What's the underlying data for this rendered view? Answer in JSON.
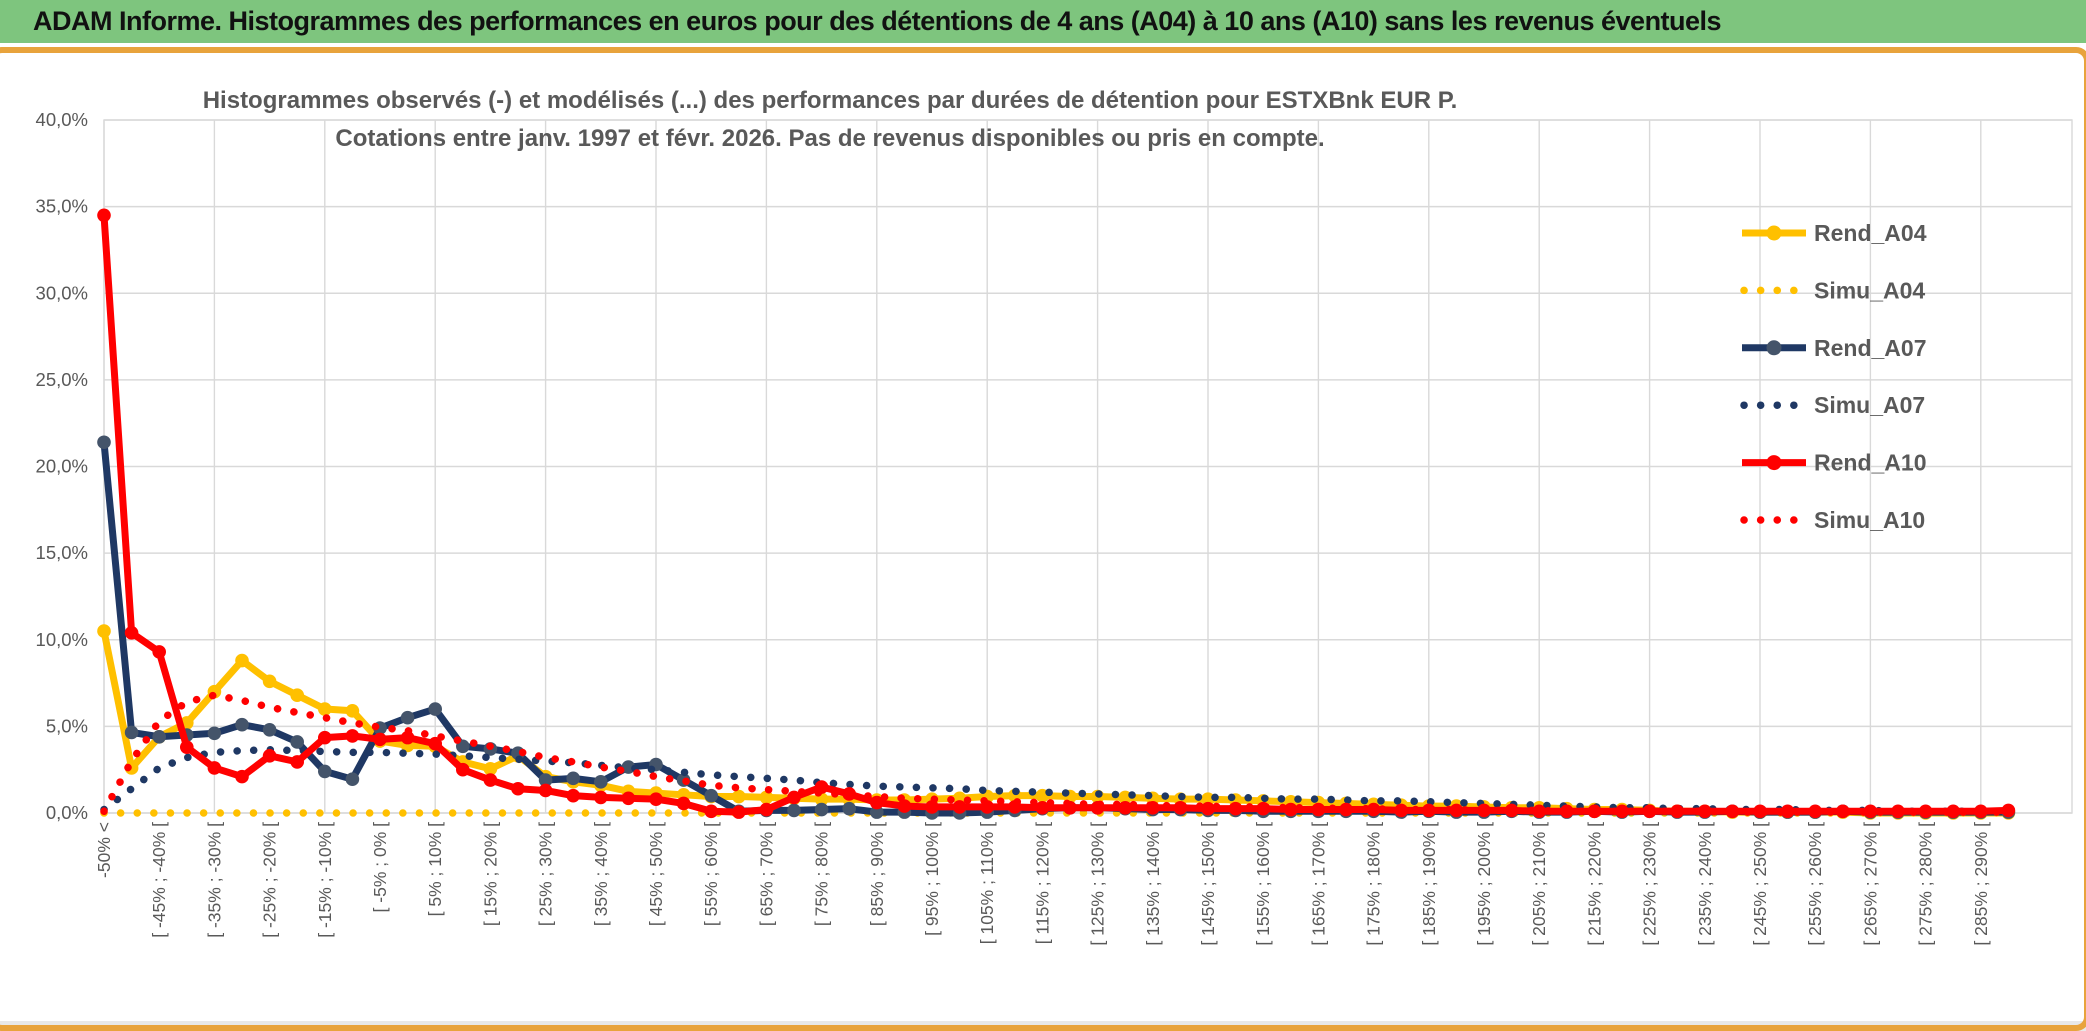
{
  "header": {
    "title": "ADAM Informe. Histogrammes des performances en euros pour des détentions de 4 ans (A04) à 10 ans (A10) sans les revenus éventuels"
  },
  "colors": {
    "title_bar_green": "#7ec57e",
    "chart_border_gold": "#e8a33c",
    "grid": "#d9d9d9",
    "axis_text": "#595959",
    "gold_series": "#FFC000",
    "navy_series": "#1F3864",
    "navy_marker": "#44546A",
    "red_series": "#FF0000"
  },
  "chart_data": {
    "type": "line",
    "title_line1": "Histogrammes observés (-) et modélisés (...) des performances par durées de détention pour ESTXBnk EUR P.",
    "title_line2": "Cotations entre janv. 1997 et févr. 2026. Pas de revenus disponibles ou pris en compte.",
    "ylabel": "",
    "xlabel": "",
    "ylim": [
      0,
      40
    ],
    "y_tick_step": 5,
    "y_tick_labels": [
      "0,0%",
      "5,0%",
      "10,0%",
      "15,0%",
      "20,0%",
      "25,0%",
      "30,0%",
      "35,0%",
      "40,0%"
    ],
    "grid": true,
    "legend_position": "right-inside",
    "n_points": 70,
    "x_label_interval": 2,
    "x_labels": [
      "-50% <",
      "[ -45% ; -40% [",
      "[ -35% ; -30% [",
      "[ -25% ; -20% [",
      "[ -15% ; -10% [",
      "[ -5% ; 0% [",
      "[ 5% ; 10% [",
      "[ 15% ; 20% [",
      "[ 25% ; 30% [",
      "[ 35% ; 40% [",
      "[ 45% ; 50% [",
      "[ 55% ; 60% [",
      "[ 65% ; 70% [",
      "[ 75% ; 80% [",
      "[ 85% ; 90% [",
      "[ 95% ; 100% [",
      "[ 105% ; 110% [",
      "[ 115% ; 120% [",
      "[ 125% ; 130% [",
      "[ 135% ; 140% [",
      "[ 145% ; 150% [",
      "[ 155% ; 160% [",
      "[ 165% ; 170% [",
      "[ 175% ; 180% [",
      "[ 185% ; 190% [",
      "[ 195% ; 200% [",
      "[ 205% ; 210% [",
      "[ 215% ; 220% [",
      "[ 225% ; 230% [",
      "[ 235% ; 240% [",
      "[ 245% ; 250% [",
      "[ 255% ; 260% [",
      "[ 265% ; 270% [",
      "[ 275% ; 280% [",
      "[ 285% ; 290% ["
    ],
    "series": [
      {
        "name": "Rend_A04",
        "style": "solid",
        "color": "#FFC000",
        "marker_color": "#FFC000",
        "values": [
          10.5,
          2.6,
          4.4,
          5.2,
          7.0,
          8.8,
          7.6,
          6.8,
          6.0,
          5.9,
          4.15,
          3.9,
          3.85,
          2.95,
          2.55,
          3.3,
          2.1,
          1.8,
          1.6,
          1.25,
          1.15,
          1.05,
          0.95,
          0.95,
          0.9,
          0.85,
          0.8,
          0.8,
          0.75,
          0.75,
          0.8,
          0.85,
          0.95,
          1.0,
          1.0,
          0.95,
          0.95,
          0.9,
          0.85,
          0.8,
          0.8,
          0.75,
          0.7,
          0.65,
          0.6,
          0.55,
          0.5,
          0.45,
          0.4,
          0.4,
          0.35,
          0.3,
          0.3,
          0.25,
          0.2,
          0.2,
          0.15,
          0.1,
          0.1,
          0.05,
          0.05,
          0.05,
          0.05,
          0.05,
          0,
          0,
          0,
          0,
          0,
          0
        ]
      },
      {
        "name": "Simu_A04",
        "style": "dotted",
        "color": "#FFC000",
        "values": [
          0,
          0,
          0,
          0,
          0,
          0,
          0,
          0,
          0,
          0,
          0,
          0,
          0,
          0,
          0,
          0,
          0,
          0,
          0,
          0,
          0,
          0,
          0,
          0,
          0,
          0,
          0,
          0,
          0,
          0,
          0,
          0,
          0,
          0,
          0,
          0,
          0,
          0,
          0,
          0,
          0,
          0,
          0,
          0,
          0,
          0,
          0,
          0,
          0,
          0,
          0,
          0,
          0,
          0,
          0,
          0,
          0,
          0,
          0,
          0,
          0,
          0,
          0,
          0,
          0,
          0,
          0,
          0,
          0,
          0
        ]
      },
      {
        "name": "Rend_A07",
        "style": "solid",
        "color": "#1F3864",
        "marker_color": "#44546A",
        "values": [
          21.4,
          4.65,
          4.4,
          4.5,
          4.6,
          5.1,
          4.8,
          4.1,
          2.4,
          1.95,
          4.9,
          5.5,
          6.0,
          3.85,
          3.7,
          3.45,
          1.9,
          2.0,
          1.8,
          2.65,
          2.8,
          1.9,
          1.0,
          0.1,
          0.15,
          0.15,
          0.2,
          0.25,
          0.05,
          0.05,
          0,
          0,
          0.05,
          0.15,
          0.25,
          0.3,
          0.3,
          0.25,
          0.2,
          0.2,
          0.15,
          0.15,
          0.1,
          0.1,
          0.1,
          0.1,
          0.1,
          0.05,
          0.1,
          0.05,
          0.05,
          0.1,
          0.05,
          0.05,
          0.1,
          0.05,
          0.1,
          0.05,
          0.05,
          0.1,
          0.05,
          0.05,
          0.05,
          0.1,
          0.05,
          0.05,
          0.05,
          0.05,
          0.05,
          0.05
        ]
      },
      {
        "name": "Simu_A07",
        "style": "dotted",
        "color": "#1F3864",
        "values": [
          0.2,
          1.4,
          2.6,
          3.2,
          3.5,
          3.6,
          3.65,
          3.6,
          3.55,
          3.5,
          3.5,
          3.45,
          3.4,
          3.3,
          3.2,
          3.1,
          3.0,
          2.9,
          2.75,
          2.6,
          2.5,
          2.35,
          2.2,
          2.1,
          2.0,
          1.9,
          1.75,
          1.65,
          1.55,
          1.5,
          1.45,
          1.4,
          1.3,
          1.25,
          1.2,
          1.15,
          1.1,
          1.05,
          1.0,
          0.95,
          0.9,
          0.9,
          0.85,
          0.8,
          0.8,
          0.75,
          0.7,
          0.7,
          0.65,
          0.6,
          0.55,
          0.5,
          0.45,
          0.4,
          0.35,
          0.3,
          0.3,
          0.25,
          0.25,
          0.2,
          0.2,
          0.2,
          0.15,
          0.15,
          0.15,
          0.1,
          0.1,
          0.1,
          0.1,
          0.1
        ]
      },
      {
        "name": "Rend_A10",
        "style": "solid",
        "color": "#FF0000",
        "marker_color": "#FF0000",
        "values": [
          34.5,
          10.4,
          9.3,
          3.8,
          2.6,
          2.1,
          3.3,
          2.95,
          4.35,
          4.45,
          4.25,
          4.35,
          4.0,
          2.5,
          1.9,
          1.4,
          1.3,
          1.0,
          0.9,
          0.85,
          0.8,
          0.55,
          0.1,
          0.05,
          0.2,
          0.9,
          1.5,
          1.1,
          0.6,
          0.4,
          0.35,
          0.35,
          0.35,
          0.35,
          0.3,
          0.3,
          0.3,
          0.3,
          0.3,
          0.3,
          0.25,
          0.25,
          0.25,
          0.2,
          0.2,
          0.2,
          0.2,
          0.15,
          0.15,
          0.15,
          0.15,
          0.15,
          0.1,
          0.1,
          0.1,
          0.1,
          0.1,
          0.1,
          0.1,
          0.1,
          0.1,
          0.1,
          0.1,
          0.1,
          0.1,
          0.1,
          0.1,
          0.1,
          0.1,
          0.15
        ]
      },
      {
        "name": "Simu_A10",
        "style": "dotted",
        "color": "#FF0000",
        "values": [
          0.1,
          3.0,
          5.3,
          6.4,
          6.8,
          6.5,
          6.1,
          5.8,
          5.5,
          5.2,
          4.95,
          4.75,
          4.45,
          4.15,
          3.85,
          3.55,
          3.2,
          2.95,
          2.65,
          2.4,
          2.1,
          1.85,
          1.6,
          1.45,
          1.35,
          1.25,
          1.15,
          1.05,
          0.95,
          0.85,
          0.8,
          0.75,
          0.7,
          0.65,
          0.6,
          0.55,
          0.5,
          0.5,
          0.45,
          0.4,
          0.4,
          0.35,
          0.35,
          0.3,
          0.3,
          0.25,
          0.25,
          0.2,
          0.2,
          0.2,
          0.15,
          0.15,
          0.15,
          0.1,
          0.1,
          0.1,
          0.1,
          0.1,
          0.1,
          0.05,
          0.05,
          0.05,
          0.05,
          0.05,
          0.05,
          0.05,
          0.05,
          0.05,
          0.05,
          0.05
        ]
      }
    ]
  }
}
